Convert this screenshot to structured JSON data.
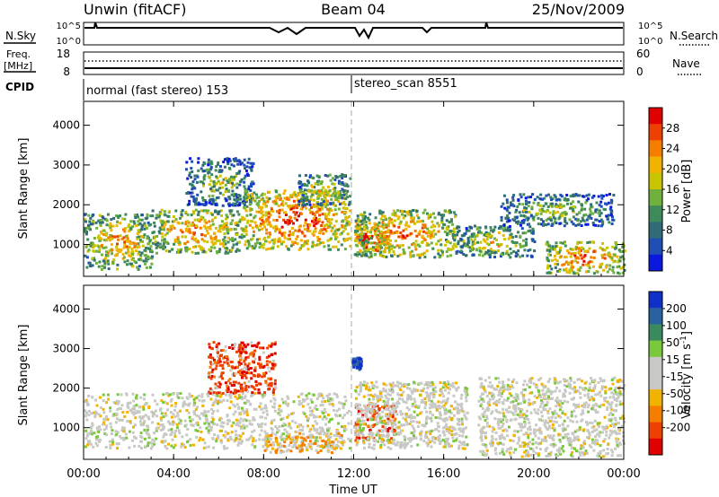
{
  "header": {
    "title": "Unwin (fitACF)",
    "beam": "Beam 04",
    "date": "25/Nov/2009"
  },
  "nsky_panel": {
    "label": "N.Sky",
    "ticks_left": [
      "10^5",
      "10^0"
    ],
    "ticks_right": [
      "10^5",
      "10^0"
    ],
    "right_label": "N.Search"
  },
  "freq_panel": {
    "label_line1": "Freq.",
    "label_line2": "[MHz]",
    "ticks_left": [
      "18",
      "8"
    ],
    "ticks_right": [
      "60",
      "0"
    ],
    "right_label": "Nave"
  },
  "cpid_panel": {
    "label": "CPID",
    "entries": [
      {
        "label": "normal (fast stereo) 153"
      },
      {
        "label": "stereo_scan 8551"
      }
    ]
  },
  "chart_data": [
    {
      "type": "heatmap",
      "title": "",
      "xlabel": "Time UT",
      "ylabel": "Slant Range [km]",
      "x_ticks": [
        "00:00",
        "04:00",
        "08:00",
        "12:00",
        "16:00",
        "20:00",
        "00:00"
      ],
      "y_ticks": [
        1000,
        2000,
        3000,
        4000
      ],
      "xlim": [
        0,
        24
      ],
      "ylim": [
        200,
        4600
      ],
      "colorbar": {
        "label": "Power [dB]",
        "ticks": [
          4,
          8,
          12,
          16,
          20,
          24,
          28
        ],
        "colors": [
          "#0a18e0",
          "#1f4eb4",
          "#2f6c78",
          "#3e8a5a",
          "#6fb13c",
          "#c9c400",
          "#f2b300",
          "#f57e00",
          "#ee4000",
          "#e00000"
        ]
      },
      "regions": [
        {
          "t0": 0.0,
          "t1": 3.0,
          "r0": 400,
          "r1": 1800,
          "level": 0.45
        },
        {
          "t0": 3.0,
          "t1": 7.0,
          "r0": 800,
          "r1": 1900,
          "level": 0.55
        },
        {
          "t0": 4.5,
          "t1": 7.5,
          "r0": 2000,
          "r1": 3200,
          "level": 0.12
        },
        {
          "t0": 7.0,
          "t1": 11.8,
          "r0": 900,
          "r1": 2400,
          "level": 0.7
        },
        {
          "t0": 9.5,
          "t1": 11.8,
          "r0": 2000,
          "r1": 2800,
          "level": 0.25
        },
        {
          "t0": 12.0,
          "t1": 13.5,
          "r0": 800,
          "r1": 1600,
          "level": 0.95
        },
        {
          "t0": 12.0,
          "t1": 16.5,
          "r0": 700,
          "r1": 1900,
          "level": 0.55
        },
        {
          "t0": 16.5,
          "t1": 20.0,
          "r0": 700,
          "r1": 1500,
          "level": 0.3
        },
        {
          "t0": 18.5,
          "t1": 23.5,
          "r0": 1500,
          "r1": 2300,
          "level": 0.15
        },
        {
          "t0": 20.5,
          "t1": 24.0,
          "r0": 300,
          "r1": 1100,
          "level": 0.6
        }
      ]
    },
    {
      "type": "heatmap",
      "title": "",
      "xlabel": "Time UT",
      "ylabel": "Slant Range [km]",
      "x_ticks": [
        "00:00",
        "04:00",
        "08:00",
        "12:00",
        "16:00",
        "20:00",
        "00:00"
      ],
      "y_ticks": [
        1000,
        2000,
        3000,
        4000
      ],
      "xlim": [
        0,
        24
      ],
      "ylim": [
        200,
        4600
      ],
      "colorbar": {
        "label": "Velocity [m s",
        "label_sup": "-1",
        "label_end": "]",
        "ticks": [
          200,
          100,
          50,
          15,
          -15,
          -50,
          -100,
          -200
        ],
        "colors": [
          "#1030c8",
          "#2a62a0",
          "#3a8a60",
          "#79c93a",
          "#c8c8c4",
          "#c8c8c4",
          "#f2b300",
          "#f57e00",
          "#ee4000",
          "#e00000"
        ]
      },
      "regions": [
        {
          "t0": 0.0,
          "t1": 11.8,
          "r0": 500,
          "r1": 1900,
          "kind": "gray"
        },
        {
          "t0": 5.5,
          "t1": 8.5,
          "r0": 1900,
          "r1": 3200,
          "kind": "red"
        },
        {
          "t0": 8.0,
          "t1": 11.5,
          "r0": 400,
          "r1": 900,
          "kind": "orange"
        },
        {
          "t0": 12.0,
          "t1": 13.8,
          "r0": 700,
          "r1": 1600,
          "kind": "red"
        },
        {
          "t0": 11.9,
          "t1": 12.3,
          "r0": 2500,
          "r1": 2800,
          "kind": "blue"
        },
        {
          "t0": 12.0,
          "t1": 17.0,
          "r0": 500,
          "r1": 2200,
          "kind": "gray"
        },
        {
          "t0": 17.5,
          "t1": 24.0,
          "r0": 300,
          "r1": 2300,
          "kind": "gray"
        }
      ]
    }
  ]
}
